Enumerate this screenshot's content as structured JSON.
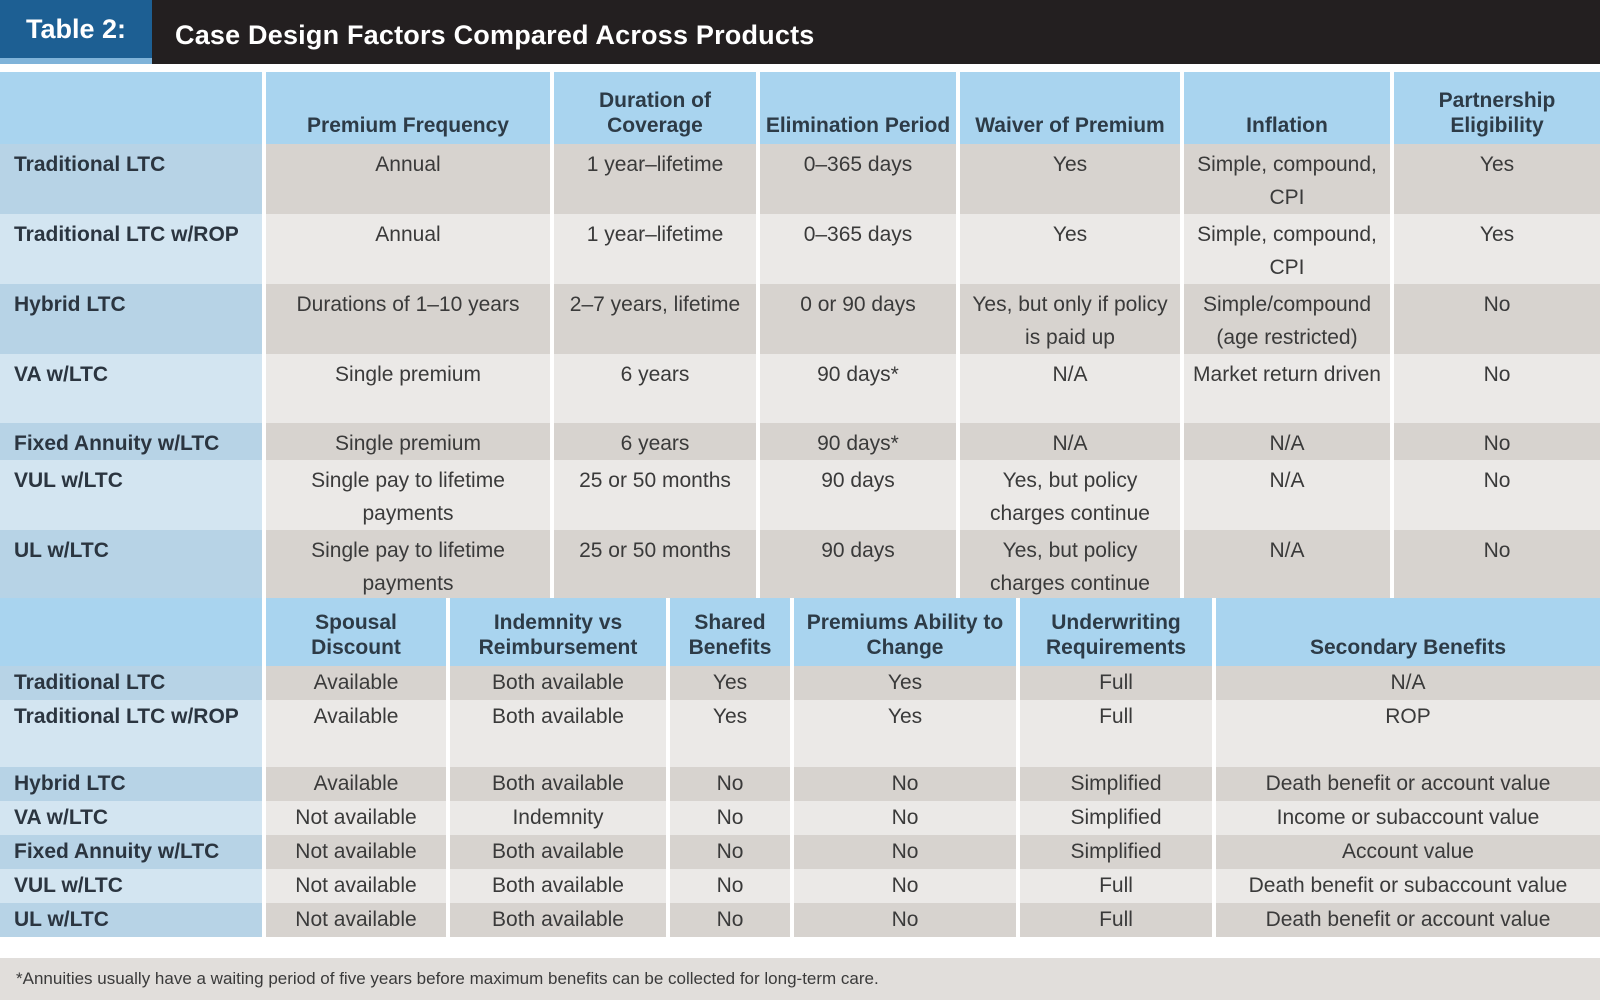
{
  "title": {
    "label": "Table 2:",
    "text": "Case Design Factors Compared Across Products"
  },
  "table1": {
    "headers": [
      "Premium Frequency",
      "Duration of Coverage",
      "Elimination Period",
      "Waiver of Premium",
      "Inflation",
      "Partnership Eligibility"
    ],
    "rows": [
      {
        "label": "Traditional LTC",
        "cells": [
          "Annual",
          "1 year–lifetime",
          "0–365 days",
          "Yes",
          "Simple, compound, CPI",
          "Yes"
        ]
      },
      {
        "label": "Traditional LTC w/ROP",
        "cells": [
          "Annual",
          "1 year–lifetime",
          "0–365 days",
          "Yes",
          "Simple, compound, CPI",
          "Yes"
        ]
      },
      {
        "label": "Hybrid LTC",
        "cells": [
          "Durations of 1–10 years",
          "2–7 years, lifetime",
          "0 or 90 days",
          "Yes, but only if policy is paid up",
          "Simple/compound (age restricted)",
          "No"
        ]
      },
      {
        "label": "VA w/LTC",
        "cells": [
          "Single premium",
          "6 years",
          "90 days*",
          "N/A",
          "Market return driven",
          "No"
        ]
      },
      {
        "label": "Fixed Annuity w/LTC",
        "cells": [
          "Single premium",
          "6 years",
          "90 days*",
          "N/A",
          "N/A",
          "No"
        ]
      },
      {
        "label": "VUL w/LTC",
        "cells": [
          "Single pay to lifetime payments",
          "25 or 50 months",
          "90 days",
          "Yes, but policy charges continue",
          "N/A",
          "No"
        ]
      },
      {
        "label": "UL w/LTC",
        "cells": [
          "Single pay to lifetime payments",
          "25 or 50 months",
          "90 days",
          "Yes, but policy charges continue",
          "N/A",
          "No"
        ]
      }
    ]
  },
  "table2": {
    "headers": [
      "Spousal Discount",
      "Indemnity vs Reimbursement",
      "Shared Benefits",
      "Premiums Ability to Change",
      "Underwriting Requirements",
      "Secondary Benefits"
    ],
    "rows": [
      {
        "label": "Traditional LTC",
        "cells": [
          "Available",
          "Both available",
          "Yes",
          "Yes",
          "Full",
          "N/A"
        ]
      },
      {
        "label": "Traditional LTC w/ROP",
        "cells": [
          "Available",
          "Both available",
          "Yes",
          "Yes",
          "Full",
          "ROP"
        ]
      },
      {
        "label": "Hybrid LTC",
        "cells": [
          "Available",
          "Both available",
          "No",
          "No",
          "Simplified",
          "Death benefit or account value"
        ]
      },
      {
        "label": "VA w/LTC",
        "cells": [
          "Not available",
          "Indemnity",
          "No",
          "No",
          "Simplified",
          "Income or subaccount value"
        ]
      },
      {
        "label": "Fixed Annuity w/LTC",
        "cells": [
          "Not available",
          "Both available",
          "No",
          "No",
          "Simplified",
          "Account value"
        ]
      },
      {
        "label": "VUL w/LTC",
        "cells": [
          "Not available",
          "Both available",
          "No",
          "No",
          "Full",
          "Death benefit or subaccount value"
        ]
      },
      {
        "label": "UL w/LTC",
        "cells": [
          "Not available",
          "Both available",
          "No",
          "No",
          "Full",
          "Death benefit or account value"
        ]
      }
    ]
  },
  "footnote": "*Annuities usually have a waiting period of five years before maximum benefits can be collected for long-term care."
}
